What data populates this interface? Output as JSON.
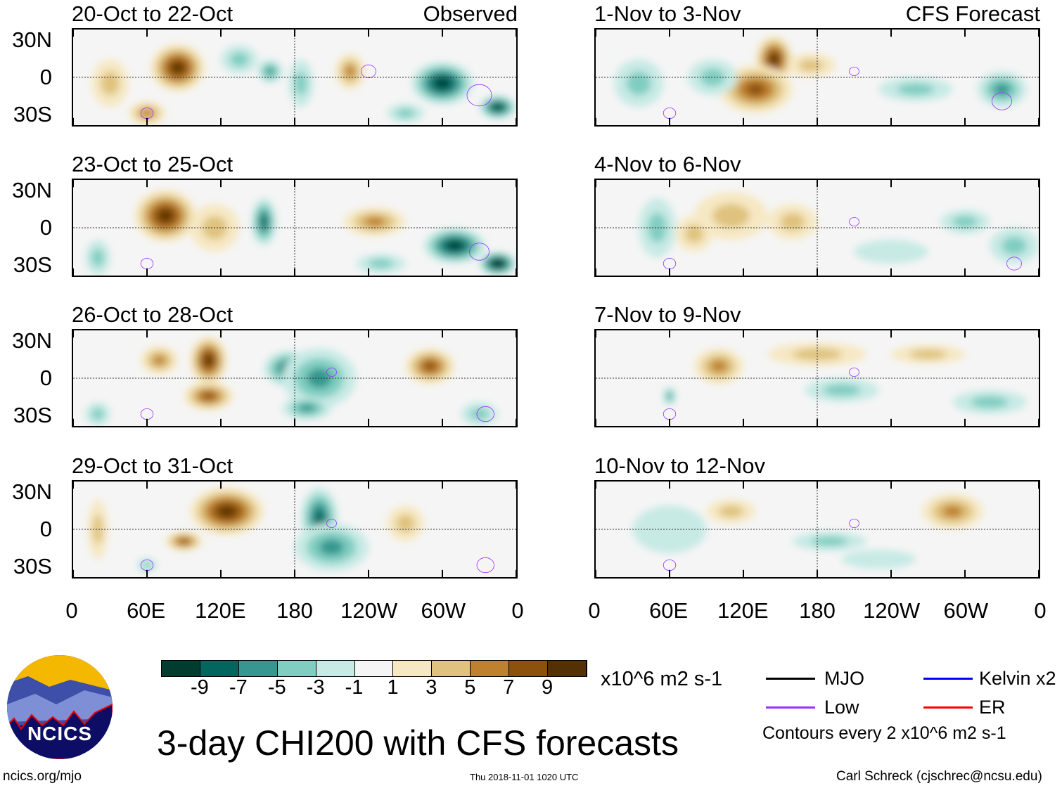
{
  "header": {
    "observed_label": "Observed",
    "forecast_label": "CFS Forecast"
  },
  "lat_labels": [
    "30N",
    "0",
    "30S"
  ],
  "lon_labels": [
    "0",
    "60E",
    "120E",
    "180",
    "120W",
    "60W",
    "0"
  ],
  "colorbar": {
    "colors": [
      "#003c30",
      "#01665e",
      "#35978f",
      "#80cdc1",
      "#c7eae5",
      "#f5f5f5",
      "#f6e8c3",
      "#dfc27d",
      "#bf812d",
      "#8c510a",
      "#543005"
    ],
    "labels": [
      "-9",
      "-7",
      "-5",
      "-3",
      "-1",
      "1",
      "3",
      "5",
      "7",
      "9"
    ],
    "units": "x10^6 m2 s-1"
  },
  "legend": {
    "mjo": "MJO",
    "kelvin": "Kelvin x2",
    "low": "Low",
    "er": "ER",
    "mjo_color": "#000000",
    "kelvin_color": "#0000ff",
    "low_color": "#9b30ff",
    "er_color": "#ff0000",
    "contour_note": "Contours every 2 x10^6 m2 s-1"
  },
  "title": "3-day CHI200 with CFS forecasts",
  "footer": {
    "url": "ncics.org/mjo",
    "timestamp": "Thu 2018-11-01 1020 UTC",
    "author": "Carl Schreck (cjschrec@ncsu.edu)",
    "logo_text": "NCICS"
  },
  "chart_data": {
    "type": "heatmap",
    "xlabel": "Longitude",
    "ylabel": "Latitude",
    "xlim": [
      0,
      360
    ],
    "ylim": [
      -40,
      40
    ],
    "panels": [
      {
        "title": "20-Oct to 22-Oct",
        "side": "observed",
        "features": [
          [
            85,
            8,
            9,
            22,
            20
          ],
          [
            60,
            -30,
            5,
            15,
            10
          ],
          [
            30,
            -5,
            3,
            15,
            20
          ],
          [
            135,
            15,
            -3,
            15,
            12
          ],
          [
            160,
            5,
            -5,
            10,
            10
          ],
          [
            225,
            5,
            5,
            12,
            15
          ],
          [
            185,
            -5,
            -3,
            10,
            20
          ],
          [
            300,
            -5,
            -9,
            25,
            18
          ],
          [
            345,
            -25,
            -9,
            15,
            10
          ],
          [
            270,
            -30,
            -3,
            15,
            8
          ]
        ],
        "lows": [
          [
            60,
            -30,
            5
          ],
          [
            240,
            5,
            6
          ],
          [
            330,
            -15,
            10
          ]
        ]
      },
      {
        "title": "23-Oct to 25-Oct",
        "side": "observed",
        "features": [
          [
            75,
            10,
            9,
            25,
            22
          ],
          [
            115,
            0,
            3,
            20,
            20
          ],
          [
            155,
            5,
            -7,
            10,
            20
          ],
          [
            245,
            5,
            5,
            25,
            12
          ],
          [
            310,
            -15,
            -9,
            25,
            15
          ],
          [
            345,
            -30,
            -11,
            15,
            10
          ],
          [
            250,
            -30,
            -3,
            20,
            8
          ],
          [
            20,
            -25,
            -3,
            10,
            15
          ]
        ],
        "lows": [
          [
            60,
            -30,
            5
          ],
          [
            330,
            -20,
            8
          ]
        ]
      },
      {
        "title": "26-Oct to 28-Oct",
        "side": "observed",
        "features": [
          [
            110,
            15,
            9,
            15,
            20
          ],
          [
            70,
            15,
            5,
            15,
            12
          ],
          [
            110,
            -15,
            7,
            20,
            12
          ],
          [
            175,
            8,
            -7,
            20,
            15
          ],
          [
            200,
            0,
            -5,
            30,
            25
          ],
          [
            190,
            -25,
            -5,
            20,
            10
          ],
          [
            290,
            10,
            7,
            20,
            15
          ],
          [
            20,
            -30,
            -3,
            10,
            10
          ],
          [
            330,
            -30,
            -3,
            15,
            10
          ]
        ],
        "lows": [
          [
            60,
            -30,
            5
          ],
          [
            335,
            -30,
            7
          ],
          [
            210,
            5,
            4
          ]
        ]
      },
      {
        "title": "29-Oct to 31-Oct",
        "side": "observed",
        "features": [
          [
            125,
            15,
            9,
            30,
            20
          ],
          [
            90,
            -10,
            7,
            15,
            8
          ],
          [
            60,
            -30,
            -3,
            8,
            6
          ],
          [
            200,
            10,
            -7,
            15,
            25
          ],
          [
            210,
            -15,
            -5,
            30,
            20
          ],
          [
            270,
            5,
            3,
            15,
            15
          ],
          [
            20,
            0,
            3,
            8,
            25
          ]
        ],
        "lows": [
          [
            60,
            -30,
            5
          ],
          [
            335,
            -30,
            7
          ],
          [
            210,
            5,
            4
          ]
        ]
      },
      {
        "title": "1-Nov to 3-Nov",
        "side": "forecast",
        "features": [
          [
            145,
            15,
            9,
            15,
            20
          ],
          [
            130,
            -10,
            7,
            30,
            20
          ],
          [
            95,
            0,
            -3,
            20,
            15
          ],
          [
            260,
            -10,
            -3,
            30,
            10
          ],
          [
            330,
            -10,
            -5,
            20,
            15
          ],
          [
            35,
            -5,
            -3,
            20,
            20
          ],
          [
            175,
            10,
            3,
            20,
            10
          ]
        ],
        "lows": [
          [
            60,
            -30,
            5
          ],
          [
            330,
            -20,
            8
          ],
          [
            210,
            5,
            4
          ]
        ]
      },
      {
        "title": "4-Nov to 6-Nov",
        "side": "forecast",
        "features": [
          [
            110,
            10,
            3,
            30,
            20
          ],
          [
            160,
            5,
            3,
            20,
            15
          ],
          [
            80,
            -5,
            3,
            15,
            15
          ],
          [
            50,
            0,
            -3,
            15,
            25
          ],
          [
            300,
            5,
            -3,
            20,
            10
          ],
          [
            340,
            -15,
            -3,
            20,
            15
          ],
          [
            240,
            -20,
            -1,
            30,
            10
          ]
        ],
        "lows": [
          [
            60,
            -30,
            5
          ],
          [
            210,
            5,
            4
          ],
          [
            340,
            -30,
            6
          ]
        ]
      },
      {
        "title": "7-Nov to 9-Nov",
        "side": "forecast",
        "features": [
          [
            100,
            10,
            5,
            20,
            15
          ],
          [
            180,
            20,
            3,
            40,
            10
          ],
          [
            60,
            -15,
            -5,
            5,
            8
          ],
          [
            200,
            -10,
            -3,
            30,
            10
          ],
          [
            320,
            -20,
            -3,
            30,
            10
          ],
          [
            270,
            20,
            3,
            30,
            8
          ]
        ],
        "lows": [
          [
            60,
            -30,
            5
          ],
          [
            210,
            5,
            4
          ]
        ]
      },
      {
        "title": "10-Nov to 12-Nov",
        "side": "forecast",
        "features": [
          [
            290,
            15,
            5,
            25,
            15
          ],
          [
            110,
            15,
            3,
            20,
            10
          ],
          [
            190,
            -10,
            -3,
            30,
            8
          ],
          [
            60,
            0,
            -1,
            30,
            20
          ],
          [
            230,
            -25,
            -1,
            30,
            8
          ]
        ],
        "lows": [
          [
            60,
            -30,
            5
          ],
          [
            210,
            5,
            4
          ]
        ]
      }
    ]
  }
}
